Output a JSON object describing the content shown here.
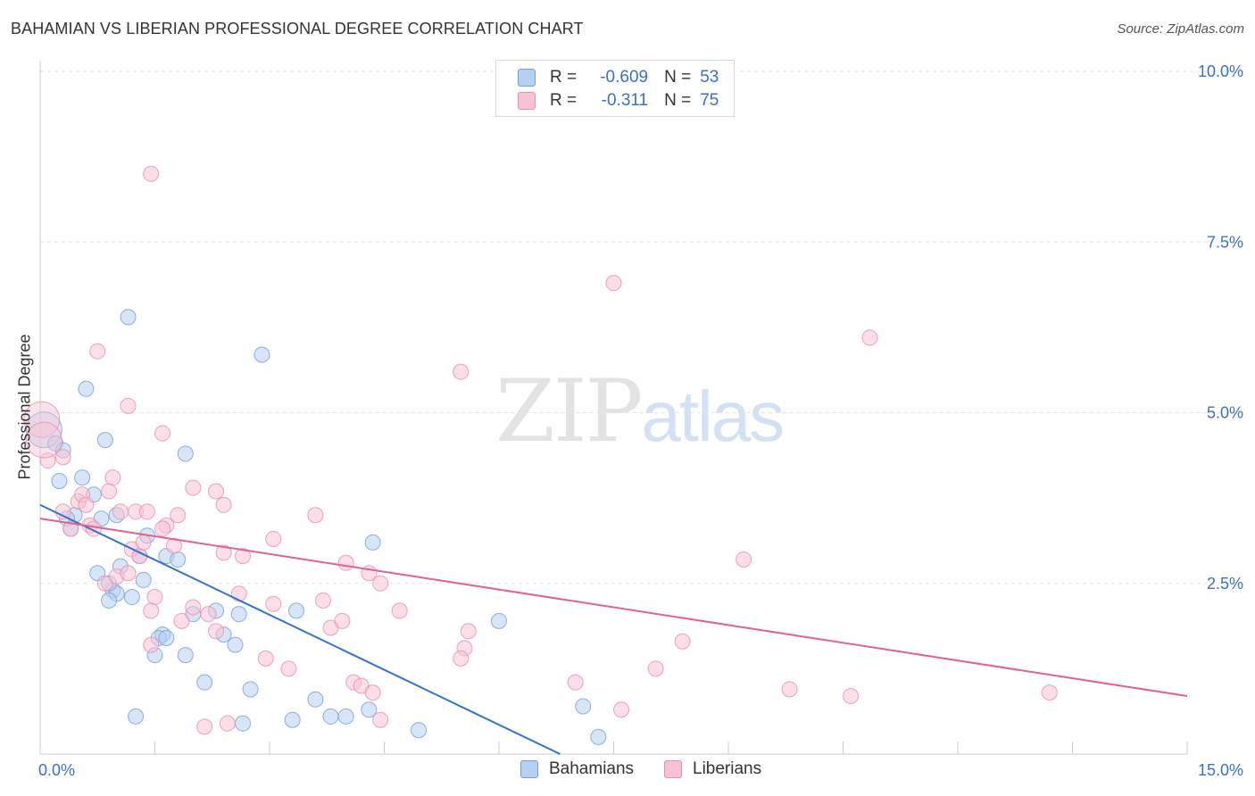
{
  "header": {
    "title": "BAHAMIAN VS LIBERIAN PROFESSIONAL DEGREE CORRELATION CHART",
    "source": "Source: ZipAtlas.com"
  },
  "watermark": {
    "zip": "ZIP",
    "atlas": "atlas"
  },
  "legend": {
    "rows": [
      {
        "r_label": "R =",
        "r_value": "-0.609",
        "n_label": "N =",
        "n_value": "53"
      },
      {
        "r_label": "R =",
        "r_value": "-0.311",
        "n_label": "N =",
        "n_value": "75"
      }
    ]
  },
  "colors": {
    "bahamians_fill": "#b6d0f1",
    "bahamians_stroke": "#6f9fdb",
    "bahamians_line": "#2f73d0",
    "liberians_fill": "#f7c2d3",
    "liberians_stroke": "#e88dab",
    "liberians_line": "#e0628e",
    "tick_label": "#3a70c9",
    "grid": "#e3e3e3"
  },
  "chart_data": {
    "type": "scatter",
    "title": "BAHAMIAN VS LIBERIAN PROFESSIONAL DEGREE CORRELATION CHART",
    "xlabel": "",
    "ylabel": "Professional Degree",
    "xlim": [
      0,
      15
    ],
    "ylim": [
      0,
      10
    ],
    "x_tick_labels": [
      "0.0%",
      "15.0%"
    ],
    "y_ticks": [
      2.5,
      5.0,
      7.5,
      10.0
    ],
    "y_tick_labels": [
      "2.5%",
      "5.0%",
      "7.5%",
      "10.0%"
    ],
    "grid": true,
    "legend_position": "top-center",
    "series": [
      {
        "name": "Bahamians",
        "r": -0.609,
        "n": 53,
        "trend": {
          "x": [
            0,
            6.8
          ],
          "y": [
            3.65,
            0
          ]
        },
        "points": [
          [
            0.05,
            4.75
          ],
          [
            0.2,
            4.55
          ],
          [
            0.3,
            4.45
          ],
          [
            0.25,
            4.0
          ],
          [
            0.55,
            4.05
          ],
          [
            0.6,
            5.35
          ],
          [
            0.85,
            4.6
          ],
          [
            1.15,
            6.4
          ],
          [
            0.7,
            3.8
          ],
          [
            0.45,
            3.5
          ],
          [
            0.35,
            3.45
          ],
          [
            0.8,
            3.45
          ],
          [
            0.4,
            3.3
          ],
          [
            1.4,
            3.2
          ],
          [
            0.75,
            2.65
          ],
          [
            1.05,
            2.75
          ],
          [
            1.3,
            2.9
          ],
          [
            1.35,
            2.55
          ],
          [
            0.95,
            2.4
          ],
          [
            1.0,
            2.35
          ],
          [
            0.9,
            2.25
          ],
          [
            1.2,
            2.3
          ],
          [
            1.65,
            2.9
          ],
          [
            1.8,
            2.85
          ],
          [
            1.9,
            4.4
          ],
          [
            2.9,
            5.85
          ],
          [
            2.0,
            2.05
          ],
          [
            2.3,
            2.1
          ],
          [
            2.6,
            2.05
          ],
          [
            1.6,
            1.75
          ],
          [
            1.55,
            1.7
          ],
          [
            1.65,
            1.7
          ],
          [
            2.4,
            1.75
          ],
          [
            2.55,
            1.6
          ],
          [
            1.5,
            1.45
          ],
          [
            1.9,
            1.45
          ],
          [
            2.15,
            1.05
          ],
          [
            2.75,
            0.95
          ],
          [
            3.35,
            2.1
          ],
          [
            3.6,
            0.8
          ],
          [
            3.8,
            0.55
          ],
          [
            4.0,
            0.55
          ],
          [
            4.3,
            0.65
          ],
          [
            4.35,
            3.1
          ],
          [
            4.95,
            0.35
          ],
          [
            6.0,
            1.95
          ],
          [
            7.1,
            0.7
          ],
          [
            7.3,
            0.25
          ],
          [
            1.25,
            0.55
          ],
          [
            2.65,
            0.45
          ],
          [
            3.3,
            0.5
          ],
          [
            1.0,
            3.5
          ],
          [
            0.9,
            2.5
          ]
        ]
      },
      {
        "name": "Liberians",
        "r": -0.311,
        "n": 75,
        "trend": {
          "x": [
            0,
            15
          ],
          "y": [
            3.45,
            0.85
          ]
        },
        "points": [
          [
            0.02,
            4.9
          ],
          [
            0.1,
            4.3
          ],
          [
            0.3,
            4.35
          ],
          [
            0.05,
            4.6
          ],
          [
            0.5,
            3.7
          ],
          [
            0.55,
            3.8
          ],
          [
            0.6,
            3.65
          ],
          [
            0.4,
            3.3
          ],
          [
            0.65,
            3.35
          ],
          [
            0.7,
            3.3
          ],
          [
            0.9,
            3.85
          ],
          [
            0.95,
            4.05
          ],
          [
            0.75,
            5.9
          ],
          [
            1.15,
            5.1
          ],
          [
            1.45,
            8.5
          ],
          [
            1.6,
            4.7
          ],
          [
            1.05,
            3.55
          ],
          [
            1.25,
            3.55
          ],
          [
            1.4,
            3.55
          ],
          [
            1.65,
            3.35
          ],
          [
            1.8,
            3.5
          ],
          [
            2.0,
            3.9
          ],
          [
            2.3,
            3.85
          ],
          [
            2.4,
            3.65
          ],
          [
            1.2,
            3.0
          ],
          [
            1.3,
            2.9
          ],
          [
            1.6,
            3.3
          ],
          [
            1.75,
            3.05
          ],
          [
            0.85,
            2.5
          ],
          [
            1.0,
            2.6
          ],
          [
            1.15,
            2.65
          ],
          [
            1.5,
            2.3
          ],
          [
            1.45,
            2.1
          ],
          [
            2.4,
            2.95
          ],
          [
            2.65,
            2.9
          ],
          [
            2.6,
            2.35
          ],
          [
            3.05,
            3.15
          ],
          [
            3.6,
            3.5
          ],
          [
            4.0,
            2.8
          ],
          [
            4.3,
            2.65
          ],
          [
            4.45,
            2.5
          ],
          [
            3.05,
            2.2
          ],
          [
            2.0,
            2.15
          ],
          [
            1.85,
            1.95
          ],
          [
            1.45,
            1.6
          ],
          [
            2.3,
            1.8
          ],
          [
            3.25,
            1.25
          ],
          [
            2.95,
            1.4
          ],
          [
            3.7,
            2.25
          ],
          [
            3.8,
            1.85
          ],
          [
            3.95,
            1.95
          ],
          [
            4.7,
            2.1
          ],
          [
            4.1,
            1.05
          ],
          [
            4.2,
            1.0
          ],
          [
            4.35,
            0.9
          ],
          [
            4.45,
            0.5
          ],
          [
            2.15,
            0.4
          ],
          [
            2.45,
            0.45
          ],
          [
            5.5,
            5.6
          ],
          [
            5.6,
            1.8
          ],
          [
            5.55,
            1.55
          ],
          [
            5.5,
            1.4
          ],
          [
            7.5,
            6.9
          ],
          [
            8.05,
            1.25
          ],
          [
            8.4,
            1.65
          ],
          [
            7.0,
            1.05
          ],
          [
            7.6,
            0.65
          ],
          [
            9.2,
            2.85
          ],
          [
            10.85,
            6.1
          ],
          [
            9.8,
            0.95
          ],
          [
            10.6,
            0.85
          ],
          [
            13.2,
            0.9
          ],
          [
            1.35,
            3.1
          ],
          [
            2.2,
            2.05
          ],
          [
            0.3,
            3.55
          ]
        ]
      }
    ]
  },
  "bottom_legend": {
    "items": [
      "Bahamians",
      "Liberians"
    ]
  }
}
